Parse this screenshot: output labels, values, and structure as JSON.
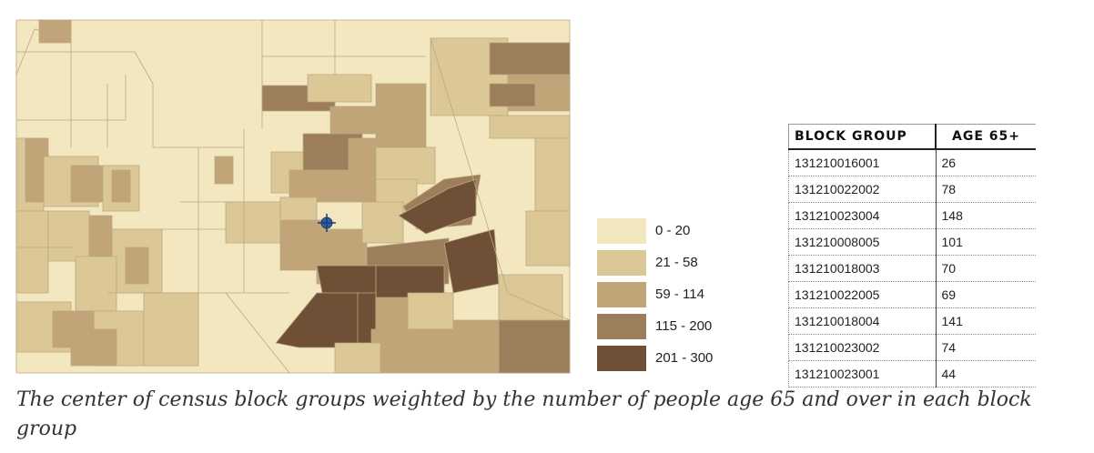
{
  "map": {
    "colors": {
      "class1": "#f3e7bf",
      "class2": "#dcc896",
      "class3": "#c1a478",
      "class4": "#9d7e5b",
      "class5": "#6f5036",
      "outline": "#b9a784",
      "marker": "#2f5fa0"
    },
    "marker_icon": "crosshair-circle"
  },
  "legend": {
    "items": [
      {
        "label": "0 - 20",
        "color": "#f3e7bf"
      },
      {
        "label": "21 - 58",
        "color": "#dcc896"
      },
      {
        "label": "59 - 114",
        "color": "#c1a478"
      },
      {
        "label": "115 - 200",
        "color": "#9d7e5b"
      },
      {
        "label": "201 - 300",
        "color": "#6f5036"
      }
    ]
  },
  "table": {
    "headers": [
      "BLOCK GROUP",
      "AGE 65+"
    ],
    "rows": [
      [
        "131210016001",
        "26"
      ],
      [
        "131210022002",
        "78"
      ],
      [
        "131210023004",
        "148"
      ],
      [
        "131210008005",
        "101"
      ],
      [
        "131210018003",
        "70"
      ],
      [
        "131210022005",
        "69"
      ],
      [
        "131210018004",
        "141"
      ],
      [
        "131210023002",
        "74"
      ],
      [
        "131210023001",
        "44"
      ]
    ]
  },
  "caption": "The center of census block groups weighted by the number of people age 65 and over in each block group"
}
